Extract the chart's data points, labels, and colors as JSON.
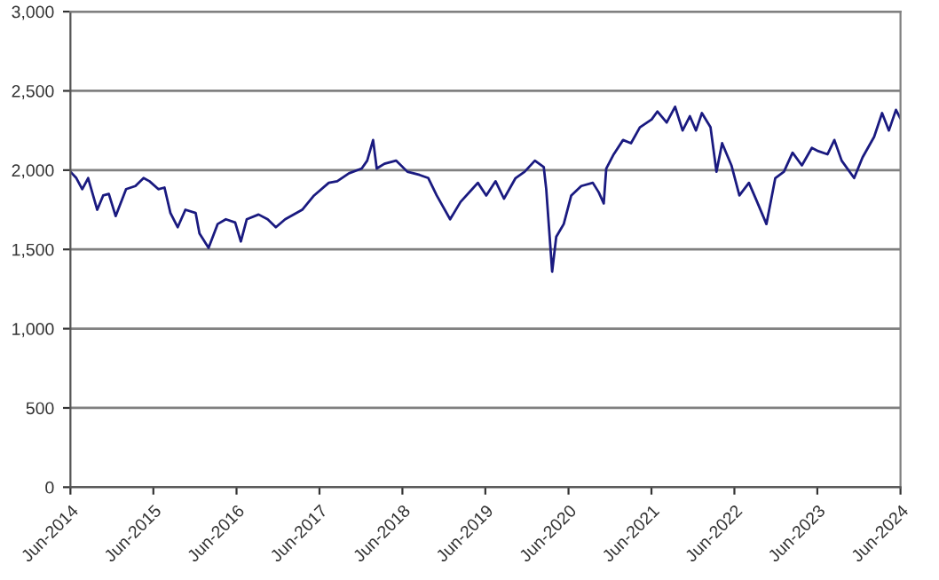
{
  "chart_data": {
    "type": "line",
    "xlim": [
      "2014-06-30",
      "2024-06-30"
    ],
    "ylim": [
      0,
      3000
    ],
    "xticks": [
      {
        "value": "2014-06-30",
        "label": "Jun-2014"
      },
      {
        "value": "2015-06-30",
        "label": "Jun-2015"
      },
      {
        "value": "2016-06-30",
        "label": "Jun-2016"
      },
      {
        "value": "2017-06-30",
        "label": "Jun-2017"
      },
      {
        "value": "2018-06-30",
        "label": "Jun-2018"
      },
      {
        "value": "2019-06-30",
        "label": "Jun-2019"
      },
      {
        "value": "2020-06-30",
        "label": "Jun-2020"
      },
      {
        "value": "2021-06-30",
        "label": "Jun-2021"
      },
      {
        "value": "2022-06-30",
        "label": "Jun-2022"
      },
      {
        "value": "2023-06-30",
        "label": "Jun-2023"
      },
      {
        "value": "2024-06-30",
        "label": "Jun-2024"
      }
    ],
    "yticks": [
      0,
      500,
      {
        "value": 1000,
        "label": "1,000"
      },
      {
        "value": 1500,
        "label": "1,500"
      },
      {
        "value": 2000,
        "label": "2,000"
      },
      {
        "value": 2500,
        "label": "2,500"
      },
      {
        "value": 3000,
        "label": "3,000"
      }
    ],
    "grid": "y",
    "legend": false,
    "marker": "none",
    "line_style": "solid",
    "series": [
      {
        "color": "#1a1a80",
        "x": [
          "2014-06-30",
          "2014-07-26",
          "2014-08-21",
          "2014-09-16",
          "2014-10-26",
          "2014-11-21",
          "2014-12-16",
          "2015-01-15",
          "2015-03-02",
          "2015-04-12",
          "2015-05-18",
          "2015-06-13",
          "2015-07-22",
          "2015-08-18",
          "2015-09-13",
          "2015-10-15",
          "2015-11-18",
          "2016-01-02",
          "2016-01-19",
          "2016-02-28",
          "2016-04-08",
          "2016-05-14",
          "2016-06-24",
          "2016-07-19",
          "2016-08-14",
          "2016-10-05",
          "2016-11-14",
          "2016-12-20",
          "2017-01-30",
          "2017-04-15",
          "2017-06-06",
          "2017-08-10",
          "2017-09-16",
          "2017-11-07",
          "2018-01-02",
          "2018-01-26",
          "2018-02-21",
          "2018-03-09",
          "2018-04-12",
          "2018-06-02",
          "2018-07-22",
          "2018-09-13",
          "2018-10-22",
          "2018-11-28",
          "2019-01-26",
          "2019-03-13",
          "2019-05-03",
          "2019-05-28",
          "2019-07-04",
          "2019-08-14",
          "2019-09-20",
          "2019-11-10",
          "2019-12-20",
          "2020-02-03",
          "2020-03-13",
          "2020-03-24",
          "2020-04-19",
          "2020-05-07",
          "2020-06-09",
          "2020-07-12",
          "2020-08-25",
          "2020-10-15",
          "2020-11-10",
          "2020-12-02",
          "2020-12-13",
          "2021-01-15",
          "2021-02-25",
          "2021-04-01",
          "2021-05-10",
          "2021-07-01",
          "2021-07-26",
          "2021-09-05",
          "2021-10-12",
          "2021-11-14",
          "2021-12-16",
          "2022-01-12",
          "2022-02-07",
          "2022-03-17",
          "2022-04-12",
          "2022-05-07",
          "2022-06-17",
          "2022-07-22",
          "2022-09-02",
          "2022-10-08",
          "2022-11-18",
          "2022-12-27",
          "2023-02-03",
          "2023-03-13",
          "2023-04-23",
          "2023-06-06",
          "2023-07-04",
          "2023-08-14",
          "2023-09-13",
          "2023-10-15",
          "2023-12-09",
          "2024-01-15",
          "2024-03-06",
          "2024-04-10",
          "2024-05-10",
          "2024-06-10",
          "2024-06-28"
        ],
        "values": [
          1990,
          1950,
          1880,
          1950,
          1750,
          1840,
          1850,
          1710,
          1880,
          1900,
          1950,
          1930,
          1880,
          1890,
          1730,
          1640,
          1750,
          1730,
          1600,
          1510,
          1660,
          1690,
          1670,
          1550,
          1690,
          1720,
          1690,
          1640,
          1690,
          1750,
          1840,
          1920,
          1930,
          1980,
          2010,
          2060,
          2190,
          2010,
          2040,
          2060,
          1990,
          1970,
          1950,
          1840,
          1690,
          1800,
          1880,
          1920,
          1840,
          1930,
          1820,
          1950,
          1990,
          2060,
          2020,
          1880,
          1360,
          1580,
          1660,
          1840,
          1900,
          1920,
          1860,
          1790,
          2010,
          2100,
          2190,
          2170,
          2270,
          2320,
          2370,
          2300,
          2400,
          2250,
          2340,
          2250,
          2360,
          2270,
          1990,
          2170,
          2030,
          1840,
          1920,
          1800,
          1660,
          1950,
          1990,
          2110,
          2030,
          2140,
          2120,
          2100,
          2190,
          2060,
          1950,
          2080,
          2210,
          2360,
          2250,
          2380,
          2330
        ]
      }
    ]
  }
}
